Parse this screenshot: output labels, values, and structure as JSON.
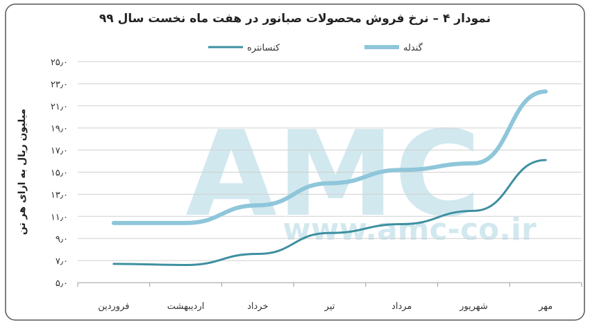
{
  "chart_data": {
    "type": "line",
    "title": "نمودار ۴ – نرخ فروش محصولات صبانور در هفت ماه نخست سال ۹۹",
    "ylabel": "میلیون ریال به ازای هر تن",
    "watermark": "AMC",
    "watermark_url": "www.amc-co.ir",
    "categories": [
      "فروردین",
      "اردیبهشت",
      "خرداد",
      "تیر",
      "مرداد",
      "شهریور",
      "مهر"
    ],
    "series": [
      {
        "name": "کنسانتره",
        "color": "#3d8f9f",
        "values": [
          6.7,
          6.6,
          7.6,
          9.5,
          10.3,
          11.5,
          16.1
        ]
      },
      {
        "name": "گندله",
        "color": "#8ec6da",
        "values": [
          10.4,
          10.4,
          12.0,
          14.0,
          15.2,
          15.8,
          22.3
        ]
      }
    ],
    "ylim": [
      5,
      25
    ],
    "yticks": [
      {
        "value": 5,
        "label": "۵٫۰"
      },
      {
        "value": 7,
        "label": "۷٫۰"
      },
      {
        "value": 9,
        "label": "۹٫۰"
      },
      {
        "value": 11,
        "label": "۱۱٫۰"
      },
      {
        "value": 13,
        "label": "۱۳٫۰"
      },
      {
        "value": 15,
        "label": "۱۵٫۰"
      },
      {
        "value": 17,
        "label": "۱۷٫۰"
      },
      {
        "value": 19,
        "label": "۱۹٫۰"
      },
      {
        "value": 21,
        "label": "۲۱٫۰"
      },
      {
        "value": 23,
        "label": "۲۳٫۰"
      },
      {
        "value": 25,
        "label": "۲۵٫۰"
      }
    ],
    "grid": true
  }
}
